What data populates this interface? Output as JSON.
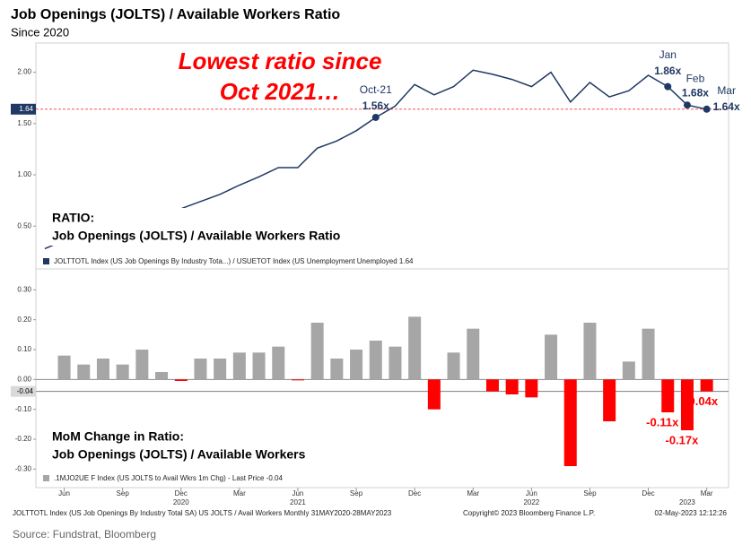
{
  "title": "Job Openings (JOLTS) / Available Workers Ratio",
  "subtitle": "Since 2020",
  "footer": {
    "left": "JOLTTOTL Index (US Job Openings By Industry Total SA) US JOLTS / Avail Workers  Monthly 31MAY2020-28MAY2023",
    "center": "Copyright© 2023 Bloomberg Finance L.P.",
    "right": "02-May-2023 12:12:26"
  },
  "source": "Source: Fundstrat, Bloomberg",
  "chart_data": [
    {
      "type": "line",
      "annotation": [
        "Lowest ratio since",
        "Oct 2021…"
      ],
      "panel_label": [
        "RATIO:",
        "Job Openings (JOLTS) / Available Workers Ratio"
      ],
      "legend": "JOLTTOTL Index (US Job Openings By Industry Tota...) / USUETOT Index (US Unemployment Unemployed 1.64",
      "series": [
        {
          "name": "Job Openings (JOLTS) / Available Workers Ratio",
          "color": "#1f3864",
          "values": [
            0.28,
            0.36,
            0.41,
            0.48,
            0.53,
            0.63,
            0.67,
            0.67,
            0.74,
            0.81,
            0.9,
            0.98,
            1.07,
            1.07,
            1.26,
            1.33,
            1.43,
            1.56,
            1.67,
            1.88,
            1.78,
            1.86,
            2.02,
            1.98,
            1.93,
            1.86,
            2.0,
            1.71,
            1.9,
            1.76,
            1.82,
            1.97,
            1.86,
            1.68,
            1.64
          ],
          "value_labels": [
            null,
            null,
            null,
            null,
            null,
            null,
            null,
            null,
            null,
            null,
            null,
            null,
            null,
            null,
            null,
            null,
            null,
            "1.56x",
            null,
            null,
            null,
            null,
            null,
            null,
            null,
            null,
            null,
            null,
            null,
            null,
            null,
            null,
            "1.86x",
            "1.68x",
            "1.64x"
          ],
          "point_names": [
            null,
            null,
            null,
            null,
            null,
            null,
            null,
            null,
            null,
            null,
            null,
            null,
            null,
            null,
            null,
            null,
            null,
            "Oct-21",
            null,
            null,
            null,
            null,
            null,
            null,
            null,
            null,
            null,
            null,
            null,
            null,
            null,
            null,
            "Jan",
            "Feb",
            "Mar"
          ]
        }
      ],
      "reference_line": {
        "value": 1.64,
        "color": "#ff5050"
      },
      "ylim": [
        0.17,
        2.25
      ],
      "yticks": [
        {
          "value": 0.5,
          "label": "0.50"
        },
        {
          "value": 1.0,
          "label": "1.00"
        },
        {
          "value": 1.5,
          "label": "1.50"
        },
        {
          "value": 2.0,
          "label": "2.00"
        }
      ]
    },
    {
      "type": "bar",
      "panel_label": [
        "MoM Change in Ratio:",
        "Job Openings (JOLTS) / Available Workers"
      ],
      "legend": ".1MJO2UE F Index (US JOLTS to Avail Wkrs 1m Chg) - Last Price -0.04",
      "categories": [
        null,
        "Jun",
        null,
        null,
        "Sep",
        null,
        null,
        "Dec",
        null,
        null,
        "Mar",
        null,
        null,
        "Jun",
        null,
        null,
        "Sep",
        null,
        null,
        "Dec",
        null,
        null,
        "Mar",
        null,
        null,
        "Jun",
        null,
        null,
        "Sep",
        null,
        null,
        "Dec",
        null,
        null,
        "Mar"
      ],
      "years": [
        null,
        null,
        null,
        null,
        null,
        null,
        null,
        "2020",
        null,
        null,
        null,
        null,
        null,
        "2021",
        null,
        null,
        null,
        null,
        null,
        null,
        null,
        null,
        null,
        null,
        null,
        "2022",
        null,
        null,
        null,
        null,
        null,
        null,
        null,
        "2023",
        null
      ],
      "series": [
        {
          "name": "MoM Change in Ratio",
          "colors": {
            "positive": "#a6a6a6",
            "negative": "#ff0000"
          },
          "values": [
            null,
            0.08,
            0.05,
            0.07,
            0.05,
            0.1,
            0.025,
            -0.005,
            0.07,
            0.07,
            0.09,
            0.09,
            0.11,
            -0.003,
            0.19,
            0.07,
            0.1,
            0.13,
            0.11,
            0.21,
            -0.1,
            0.09,
            0.17,
            -0.04,
            -0.05,
            -0.06,
            0.15,
            -0.29,
            0.19,
            -0.14,
            0.06,
            0.17,
            -0.11,
            -0.17,
            -0.04
          ],
          "value_labels": [
            null,
            null,
            null,
            null,
            null,
            null,
            null,
            null,
            null,
            null,
            null,
            null,
            null,
            null,
            null,
            null,
            null,
            null,
            null,
            null,
            null,
            null,
            null,
            null,
            null,
            null,
            null,
            null,
            null,
            null,
            null,
            null,
            "-0.11x",
            "-0.17x",
            "-0.04x"
          ]
        }
      ],
      "reference_line": {
        "value": -0.04,
        "color": "#808080"
      },
      "ylim": [
        -0.35,
        0.355
      ],
      "yticks": [
        {
          "value": -0.3,
          "label": "-0.30"
        },
        {
          "value": -0.2,
          "label": "-0.20"
        },
        {
          "value": -0.1,
          "label": "-0.10"
        },
        {
          "value": 0,
          "label": "0.00"
        },
        {
          "value": 0.1,
          "label": "0.10"
        },
        {
          "value": 0.2,
          "label": "0.20"
        },
        {
          "value": 0.3,
          "label": "0.30"
        }
      ]
    }
  ]
}
